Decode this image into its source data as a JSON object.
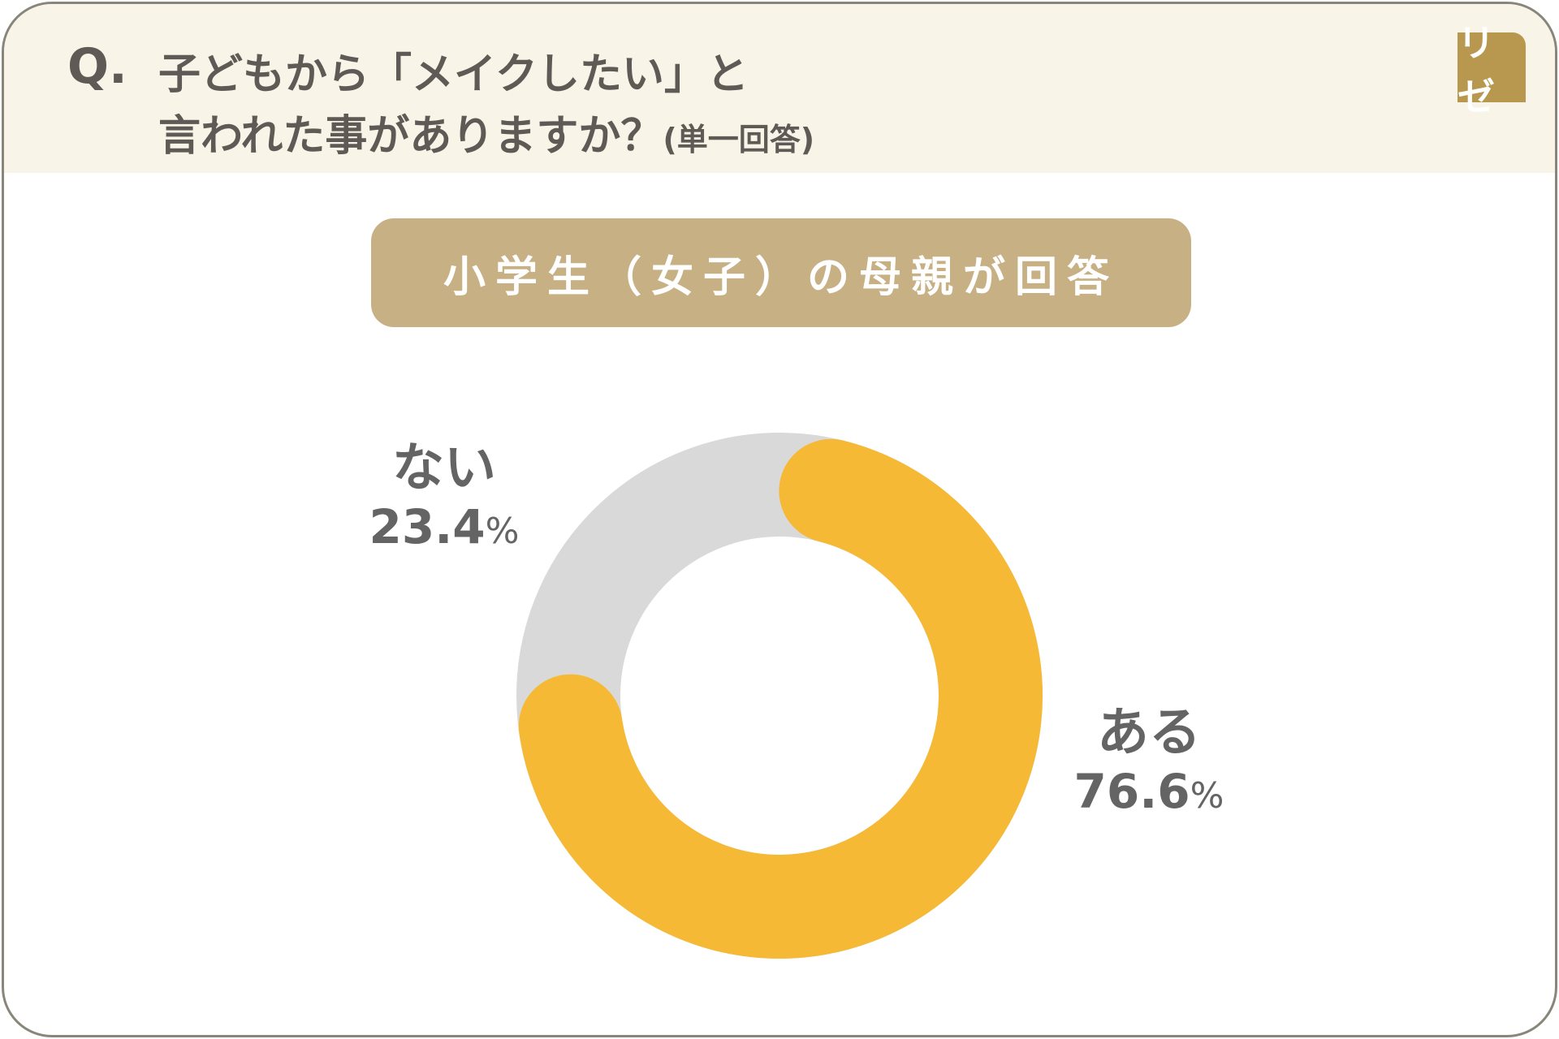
{
  "header": {
    "q_label": "Q.",
    "line1": "子どもから「メイクしたい」と",
    "line2": "言われた事がありますか？",
    "note": "(単一回答)"
  },
  "logo": {
    "text": "リゼ",
    "color": "#b8974e"
  },
  "subtitle": "小学生（女子）の母親が回答",
  "chart_data": {
    "type": "pie",
    "donut": true,
    "categories": [
      "ある",
      "ない"
    ],
    "values": [
      76.6,
      23.4
    ],
    "labels": [
      "76.6",
      "23.4"
    ],
    "unit": "%",
    "colors": [
      "#f5b935",
      "#d9d9d9"
    ]
  }
}
